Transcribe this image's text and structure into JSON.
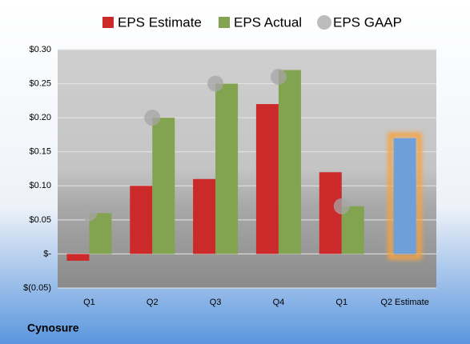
{
  "chart_data": {
    "type": "bar",
    "footer": "Cynosure",
    "categories": [
      "Q1",
      "Q2",
      "Q3",
      "Q4",
      "Q1",
      "Q2 Estimate"
    ],
    "series": [
      {
        "name": "EPS Estimate",
        "color": "#cc2a2a",
        "values": [
          -0.01,
          0.1,
          0.11,
          0.22,
          0.12,
          null
        ]
      },
      {
        "name": "EPS Actual",
        "color": "#82a34f",
        "values": [
          0.06,
          0.2,
          0.25,
          0.27,
          0.07,
          null
        ]
      },
      {
        "name": "EPS GAAP",
        "color": "#a6a6a6",
        "marker": "circle",
        "values": [
          0.06,
          0.2,
          0.25,
          0.26,
          0.07,
          null
        ]
      },
      {
        "color": "#6f9fd8",
        "glow": "#f5a340",
        "values": [
          null,
          null,
          null,
          null,
          null,
          0.17
        ]
      }
    ],
    "ylim": [
      -0.05,
      0.3
    ],
    "yticks": [
      {
        "value": -0.05,
        "label": "$(0.05)"
      },
      {
        "value": 0,
        "label": "$-"
      },
      {
        "value": 0.05,
        "label": "$0.05"
      },
      {
        "value": 0.1,
        "label": "$0.10"
      },
      {
        "value": 0.15,
        "label": "$0.15"
      },
      {
        "value": 0.2,
        "label": "$0.20"
      },
      {
        "value": 0.25,
        "label": "$0.25"
      },
      {
        "value": 0.3,
        "label": "$0.30"
      }
    ],
    "grid": true
  }
}
